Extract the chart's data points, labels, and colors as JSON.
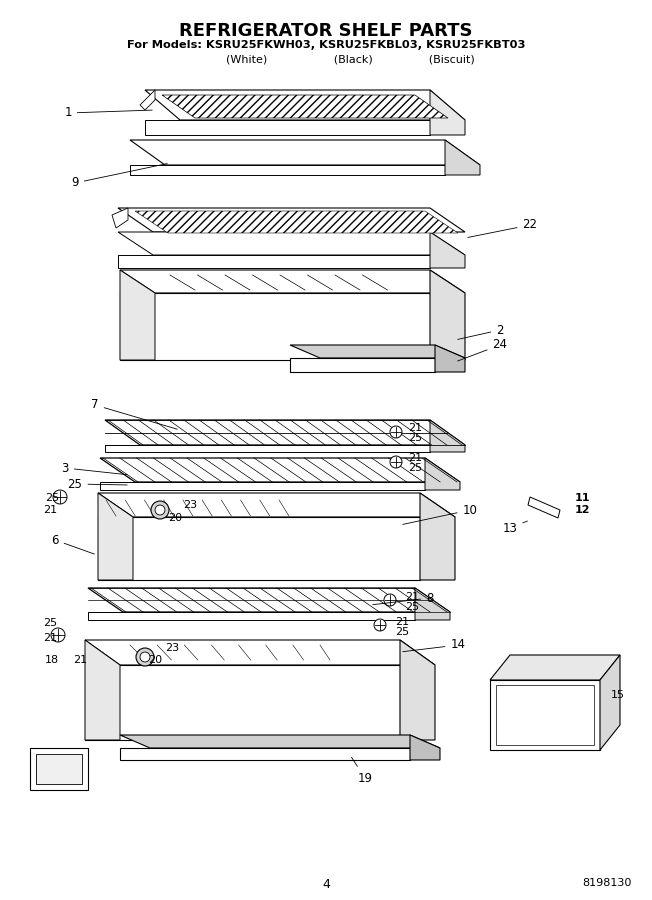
{
  "title": "REFRIGERATOR SHELF PARTS",
  "subtitle1": "For Models: KSRU25FKWH03, KSRU25FKBL03, KSRU25FKBT03",
  "subtitle2": "              (White)                   (Black)                (Biscuit)",
  "page_number": "4",
  "doc_number": "8198130",
  "bg_color": "#ffffff"
}
